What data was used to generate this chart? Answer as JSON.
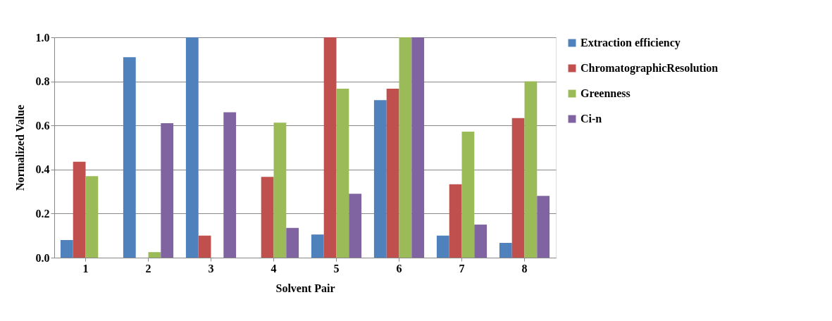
{
  "chart_data": {
    "type": "bar",
    "xlabel": "Solvent Pair",
    "ylabel": "Normalized Value",
    "categories": [
      "1",
      "2",
      "3",
      "4",
      "5",
      "6",
      "7",
      "8"
    ],
    "series": [
      {
        "name": "Extraction efficiency",
        "color": "#4f81bd",
        "values": [
          0.08,
          0.91,
          1.0,
          0,
          0.105,
          0.715,
          0.1,
          0.067
        ]
      },
      {
        "name": "ChromatographicResolution",
        "color": "#c0504d",
        "values": [
          0.435,
          0,
          0.1,
          0.367,
          1.0,
          0.767,
          0.333,
          0.633
        ]
      },
      {
        "name": "Greenness",
        "color": "#9bbb59",
        "values": [
          0.37,
          0.025,
          0,
          0.613,
          0.767,
          1.0,
          0.572,
          0.8
        ]
      },
      {
        "name": "Ci-n",
        "color": "#8064a2",
        "values": [
          0,
          0.61,
          0.66,
          0.135,
          0.29,
          1.0,
          0.15,
          0.28
        ]
      }
    ],
    "ylim": [
      0,
      1.0
    ],
    "yticks": [
      {
        "value": 0,
        "label": "0.0"
      },
      {
        "value": 0.2,
        "label": "0.2"
      },
      {
        "value": 0.4,
        "label": "0.4"
      },
      {
        "value": 0.6,
        "label": "0.6"
      },
      {
        "value": 0.8,
        "label": "0.8"
      },
      {
        "value": 1.0,
        "label": "1.0"
      }
    ],
    "grid": "y",
    "legend": "right"
  }
}
